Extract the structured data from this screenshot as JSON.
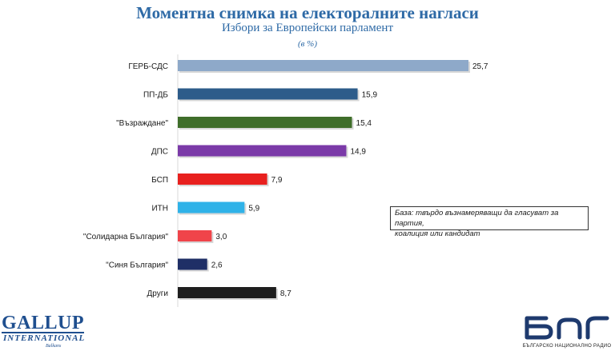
{
  "chart_data": {
    "type": "bar",
    "orientation": "horizontal",
    "title": "Моментна снимка на електоралните нагласи",
    "subtitle": "Избори за Европейски парламент",
    "unit_note": "(в %)",
    "categories": [
      "ГЕРБ-СДС",
      "ПП-ДБ",
      "\"Възраждане\"",
      "ДПС",
      "БСП",
      "ИТН",
      "\"Солидарна България\"",
      "\"Синя България\"",
      "Други"
    ],
    "values": [
      25.7,
      15.9,
      15.4,
      14.9,
      7.9,
      5.9,
      3.0,
      2.6,
      8.7
    ],
    "value_labels": [
      "25,7",
      "15,9",
      "15,4",
      "14,9",
      "7,9",
      "5,9",
      "3,0",
      "2,6",
      "8,7"
    ],
    "colors": [
      "#8ea9c9",
      "#2d5c8a",
      "#3f6e2a",
      "#7b3aa8",
      "#e8201e",
      "#2fb2e8",
      "#f0444a",
      "#1f2f66",
      "#1e1e1e"
    ],
    "xlim": [
      0,
      30
    ],
    "grid": false,
    "legend": "none"
  },
  "note": {
    "line1": "База: твърдо възнамеряващи да гласуват за партия,",
    "line2": "коалиция или кандидат"
  },
  "logos": {
    "gallup_main": "GALLUP",
    "gallup_intl": "INTERNATIONAL",
    "gallup_balkan": "Balkans",
    "bnr_caption": "БЪЛГАРСКО НАЦИОНАЛНО РАДИО"
  }
}
